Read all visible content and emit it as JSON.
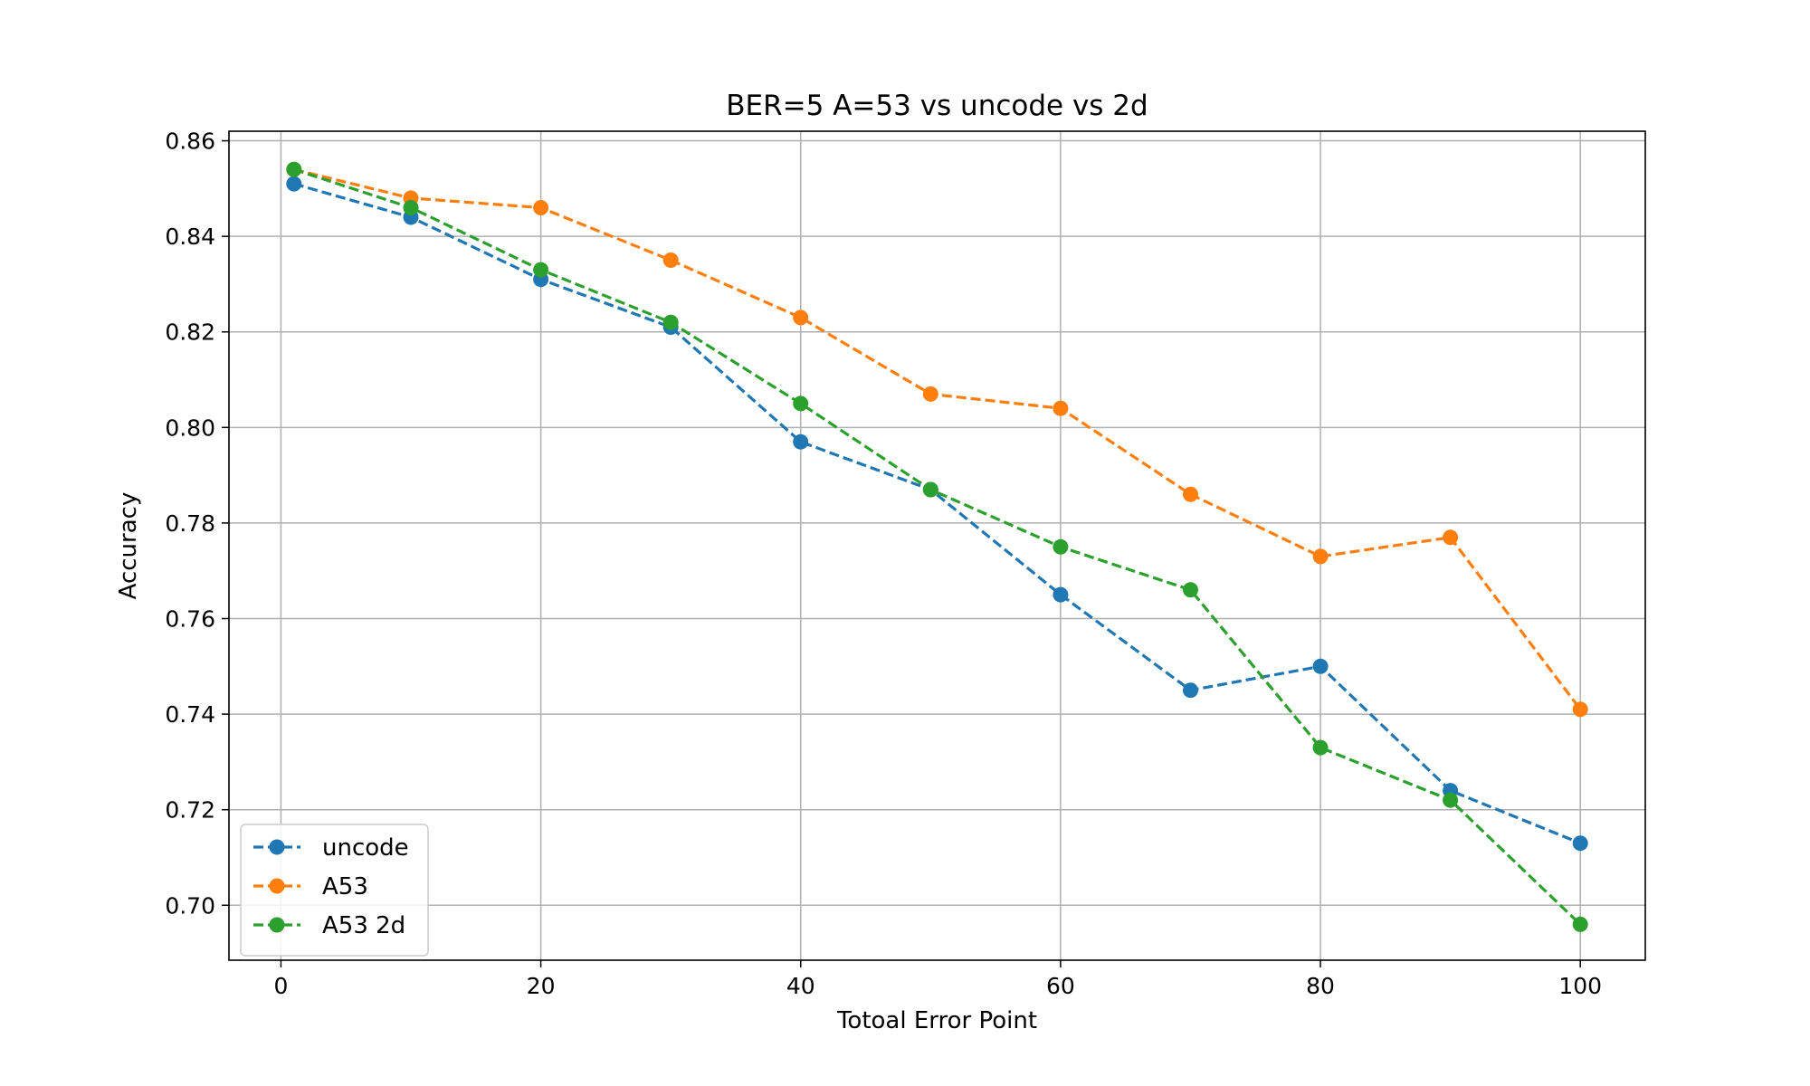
{
  "chart_data": {
    "type": "line",
    "title": "BER=5 A=53 vs uncode vs 2d",
    "xlabel": "Totoal Error Point",
    "ylabel": "Accuracy",
    "xlim": [
      -4,
      105
    ],
    "ylim": [
      0.6885,
      0.862
    ],
    "xticks": [
      0,
      20,
      40,
      60,
      80,
      100
    ],
    "yticks": [
      0.7,
      0.72,
      0.74,
      0.76,
      0.78,
      0.8,
      0.82,
      0.84,
      0.86
    ],
    "grid": true,
    "legend_position": "lower-left",
    "x": [
      1,
      10,
      20,
      30,
      40,
      50,
      60,
      70,
      80,
      90,
      100
    ],
    "series": [
      {
        "name": "uncode",
        "color": "#1f77b4",
        "values": [
          0.851,
          0.844,
          0.831,
          0.821,
          0.797,
          0.787,
          0.765,
          0.745,
          0.75,
          0.724,
          0.713
        ]
      },
      {
        "name": "A53",
        "color": "#ff7f0e",
        "values": [
          0.854,
          0.848,
          0.846,
          0.835,
          0.823,
          0.807,
          0.804,
          0.786,
          0.773,
          0.777,
          0.741
        ]
      },
      {
        "name": "A53 2d",
        "color": "#2ca02c",
        "values": [
          0.854,
          0.846,
          0.833,
          0.822,
          0.805,
          0.787,
          0.775,
          0.766,
          0.733,
          0.722,
          0.696
        ]
      }
    ]
  }
}
